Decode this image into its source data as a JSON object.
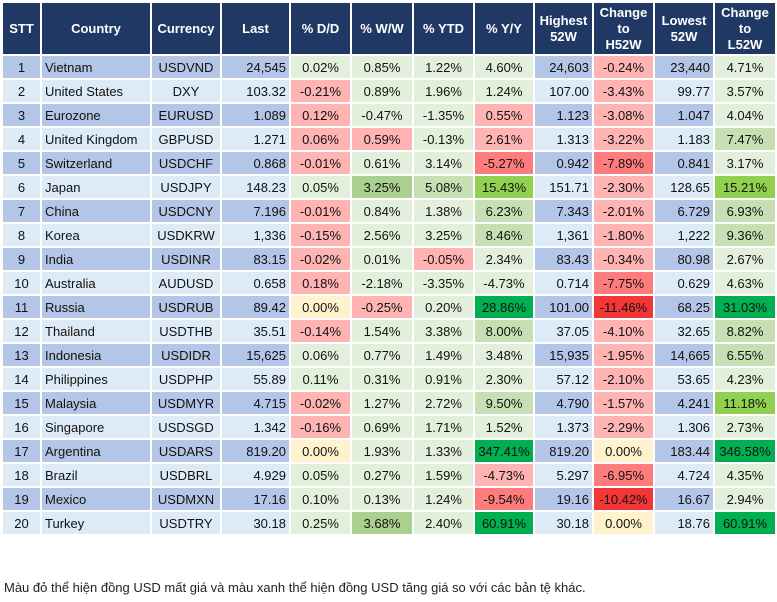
{
  "headers": [
    "STT",
    "Country",
    "Currency",
    "Last",
    "% D/D",
    "% W/W",
    "% YTD",
    "% Y/Y",
    "Highest\n52W",
    "Change\nto\nH52W",
    "Lowest\n52W",
    "Change\nto\nL52W"
  ],
  "colors": {
    "g": "#e2efda",
    "G": "#c6e0b4",
    "M": "#a9d08e",
    "B": "#92d050",
    "D": "#00b050",
    "r": "#ffb3b3",
    "R": "#ff7c7c",
    "X": "#f43636",
    "y": "#fff2cc",
    "header": "#203864",
    "row_odd": "#b4c6e7",
    "row_even": "#ddebf7"
  },
  "rows": [
    {
      "stt": "1",
      "country": "Vietnam",
      "currency": "USDVND",
      "last": "24,545",
      "dd": "0.02%",
      "ww": "0.85%",
      "ytd": "1.22%",
      "yy": "4.60%",
      "high": "24,603",
      "h52": "-0.24%",
      "low": "23,440",
      "l52": "4.71%",
      "shade": "gggg rg"
    },
    {
      "stt": "2",
      "country": "United States",
      "currency": "DXY",
      "last": "103.32",
      "dd": "-0.21%",
      "ww": "0.89%",
      "ytd": "1.96%",
      "yy": "1.24%",
      "high": "107.00",
      "h52": "-3.43%",
      "low": "99.77",
      "l52": "3.57%",
      "shade": "rggg rg"
    },
    {
      "stt": "3",
      "country": "Eurozone",
      "currency": "EURUSD",
      "last": "1.089",
      "dd": "0.12%",
      "ww": "-0.47%",
      "ytd": "-1.35%",
      "yy": "0.55%",
      "high": "1.123",
      "h52": "-3.08%",
      "low": "1.047",
      "l52": "4.04%",
      "shade": "rggr rg"
    },
    {
      "stt": "4",
      "country": "United Kingdom",
      "currency": "GBPUSD",
      "last": "1.271",
      "dd": "0.06%",
      "ww": "0.59%",
      "ytd": "-0.13%",
      "yy": "2.61%",
      "high": "1.313",
      "h52": "-3.22%",
      "low": "1.183",
      "l52": "7.47%",
      "shade": "rrgr rG"
    },
    {
      "stt": "5",
      "country": "Switzerland",
      "currency": "USDCHF",
      "last": "0.868",
      "dd": "-0.01%",
      "ww": "0.61%",
      "ytd": "3.14%",
      "yy": "-5.27%",
      "high": "0.942",
      "h52": "-7.89%",
      "low": "0.841",
      "l52": "3.17%",
      "shade": "rggR Rg"
    },
    {
      "stt": "6",
      "country": "Japan",
      "currency": "USDJPY",
      "last": "148.23",
      "dd": "0.05%",
      "ww": "3.25%",
      "ytd": "5.08%",
      "yy": "15.43%",
      "high": "151.71",
      "h52": "-2.30%",
      "low": "128.65",
      "l52": "15.21%",
      "shade": "gMGB rB"
    },
    {
      "stt": "7",
      "country": "China",
      "currency": "USDCNY",
      "last": "7.196",
      "dd": "-0.01%",
      "ww": "0.84%",
      "ytd": "1.38%",
      "yy": "6.23%",
      "high": "7.343",
      "h52": "-2.01%",
      "low": "6.729",
      "l52": "6.93%",
      "shade": "rggG rG"
    },
    {
      "stt": "8",
      "country": "Korea",
      "currency": "USDKRW",
      "last": "1,336",
      "dd": "-0.15%",
      "ww": "2.56%",
      "ytd": "3.25%",
      "yy": "8.46%",
      "high": "1,361",
      "h52": "-1.80%",
      "low": "1,222",
      "l52": "9.36%",
      "shade": "rggG rG"
    },
    {
      "stt": "9",
      "country": "India",
      "currency": "USDINR",
      "last": "83.15",
      "dd": "-0.02%",
      "ww": "0.01%",
      "ytd": "-0.05%",
      "yy": "2.34%",
      "high": "83.43",
      "h52": "-0.34%",
      "low": "80.98",
      "l52": "2.67%",
      "shade": "rgrg rg"
    },
    {
      "stt": "10",
      "country": "Australia",
      "currency": "AUDUSD",
      "last": "0.658",
      "dd": "0.18%",
      "ww": "-2.18%",
      "ytd": "-3.35%",
      "yy": "-4.73%",
      "high": "0.714",
      "h52": "-7.75%",
      "low": "0.629",
      "l52": "4.63%",
      "shade": "rggg Rg"
    },
    {
      "stt": "11",
      "country": "Russia",
      "currency": "USDRUB",
      "last": "89.42",
      "dd": "0.00%",
      "ww": "-0.25%",
      "ytd": "0.20%",
      "yy": "28.86%",
      "high": "101.00",
      "h52": "-11.46%",
      "low": "68.25",
      "l52": "31.03%",
      "shade": "yrgD XD"
    },
    {
      "stt": "12",
      "country": "Thailand",
      "currency": "USDTHB",
      "last": "35.51",
      "dd": "-0.14%",
      "ww": "1.54%",
      "ytd": "3.38%",
      "yy": "8.00%",
      "high": "37.05",
      "h52": "-4.10%",
      "low": "32.65",
      "l52": "8.82%",
      "shade": "rggG rG"
    },
    {
      "stt": "13",
      "country": "Indonesia",
      "currency": "USDIDR",
      "last": "15,625",
      "dd": "0.06%",
      "ww": "0.77%",
      "ytd": "1.49%",
      "yy": "3.48%",
      "high": "15,935",
      "h52": "-1.95%",
      "low": "14,665",
      "l52": "6.55%",
      "shade": "gggg rG"
    },
    {
      "stt": "14",
      "country": "Philippines",
      "currency": "USDPHP",
      "last": "55.89",
      "dd": "0.11%",
      "ww": "0.31%",
      "ytd": "0.91%",
      "yy": "2.30%",
      "high": "57.12",
      "h52": "-2.10%",
      "low": "53.65",
      "l52": "4.23%",
      "shade": "gggg rg"
    },
    {
      "stt": "15",
      "country": "Malaysia",
      "currency": "USDMYR",
      "last": "4.715",
      "dd": "-0.02%",
      "ww": "1.27%",
      "ytd": "2.72%",
      "yy": "9.50%",
      "high": "4.790",
      "h52": "-1.57%",
      "low": "4.241",
      "l52": "11.18%",
      "shade": "rggG rB"
    },
    {
      "stt": "16",
      "country": "Singapore",
      "currency": "USDSGD",
      "last": "1.342",
      "dd": "-0.16%",
      "ww": "0.69%",
      "ytd": "1.71%",
      "yy": "1.52%",
      "high": "1.373",
      "h52": "-2.29%",
      "low": "1.306",
      "l52": "2.73%",
      "shade": "rggg rg"
    },
    {
      "stt": "17",
      "country": "Argentina",
      "currency": "USDARS",
      "last": "819.20",
      "dd": "0.00%",
      "ww": "1.93%",
      "ytd": "1.33%",
      "yy": "347.41%",
      "high": "819.20",
      "h52": "0.00%",
      "low": "183.44",
      "l52": "346.58%",
      "shade": "yggD yD"
    },
    {
      "stt": "18",
      "country": "Brazil",
      "currency": "USDBRL",
      "last": "4.929",
      "dd": "0.05%",
      "ww": "0.27%",
      "ytd": "1.59%",
      "yy": "-4.73%",
      "high": "5.297",
      "h52": "-6.95%",
      "low": "4.724",
      "l52": "4.35%",
      "shade": "gggr Rg"
    },
    {
      "stt": "19",
      "country": "Mexico",
      "currency": "USDMXN",
      "last": "17.16",
      "dd": "0.10%",
      "ww": "0.13%",
      "ytd": "1.24%",
      "yy": "-9.54%",
      "high": "19.16",
      "h52": "-10.42%",
      "low": "16.67",
      "l52": "2.94%",
      "shade": "gggR Xg"
    },
    {
      "stt": "20",
      "country": "Turkey",
      "currency": "USDTRY",
      "last": "30.18",
      "dd": "0.25%",
      "ww": "3.68%",
      "ytd": "2.40%",
      "yy": "60.91%",
      "high": "30.18",
      "h52": "0.00%",
      "low": "18.76",
      "l52": "60.91%",
      "shade": "gMgD yD"
    }
  ],
  "footnote": "Màu đỏ thể hiện đồng USD mất giá và màu xanh thể hiện đồng USD tăng giá so với các bản tệ khác."
}
